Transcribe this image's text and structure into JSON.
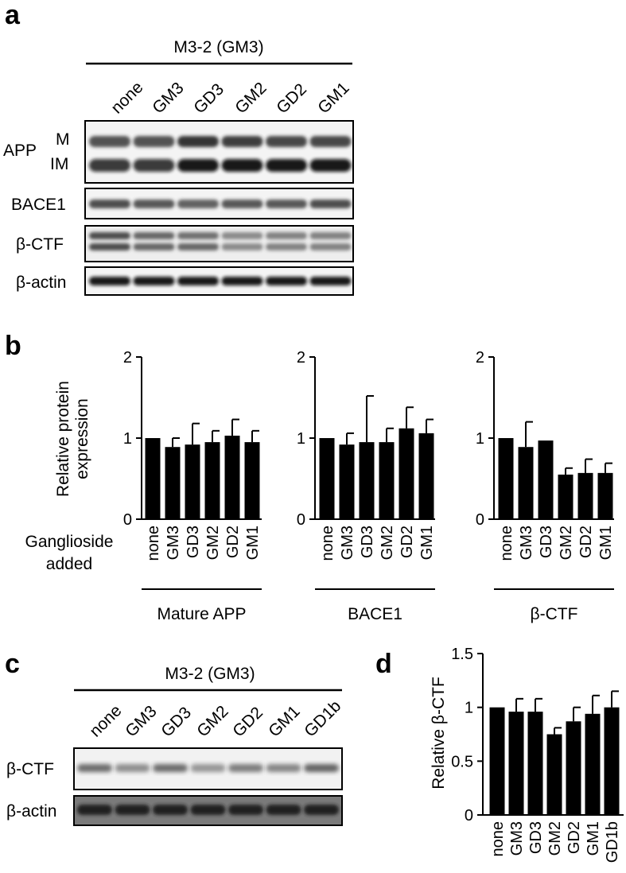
{
  "figure": {
    "panel_a": {
      "letter": "a",
      "cell_line": "M3-2 (GM3)",
      "lane_labels": [
        "none",
        "GM3",
        "GD3",
        "GM2",
        "GD2",
        "GM1"
      ],
      "blots": [
        {
          "label": "APP",
          "bands": [
            "M",
            "IM"
          ]
        },
        {
          "label": "BACE1"
        },
        {
          "label": "β-CTF"
        },
        {
          "label": "β-actin"
        }
      ]
    },
    "panel_b": {
      "letter": "b",
      "ylabel_line1": "Relative protein",
      "ylabel_line2": "expression",
      "xlabel_line1": "Ganglioside",
      "xlabel_line2": "added"
    },
    "panel_c": {
      "letter": "c",
      "cell_line": "M3-2 (GM3)",
      "lane_labels": [
        "none",
        "GM3",
        "GD3",
        "GM2",
        "GD2",
        "GM1",
        "GD1b"
      ],
      "blots": [
        {
          "label": "β-CTF"
        },
        {
          "label": "β-actin"
        }
      ]
    },
    "panel_d": {
      "letter": "d",
      "ylabel": "Relative β-CTF"
    }
  },
  "chart_data": [
    {
      "type": "bar",
      "panel": "b",
      "group_label": "Mature APP",
      "categories": [
        "none",
        "GM3",
        "GD3",
        "GM2",
        "GD2",
        "GM1"
      ],
      "values": [
        1.0,
        0.89,
        0.92,
        0.95,
        1.03,
        0.95
      ],
      "error": [
        0.0,
        0.11,
        0.26,
        0.14,
        0.2,
        0.14
      ],
      "ylim": [
        0,
        2
      ],
      "yticks": [
        "0",
        "1",
        "2"
      ],
      "ytick_values": [
        0,
        1,
        2
      ],
      "grid": false,
      "color": "#000000"
    },
    {
      "type": "bar",
      "panel": "b",
      "group_label": "BACE1",
      "categories": [
        "none",
        "GM3",
        "GD3",
        "GM2",
        "GD2",
        "GM1"
      ],
      "values": [
        1.0,
        0.92,
        0.95,
        0.95,
        1.12,
        1.06
      ],
      "error": [
        0.0,
        0.14,
        0.57,
        0.17,
        0.26,
        0.17
      ],
      "ylim": [
        0,
        2
      ],
      "yticks": [
        "0",
        "1",
        "2"
      ],
      "ytick_values": [
        0,
        1,
        2
      ],
      "grid": false,
      "color": "#000000"
    },
    {
      "type": "bar",
      "panel": "b",
      "group_label": "β-CTF",
      "categories": [
        "none",
        "GM3",
        "GD3",
        "GM2",
        "GD2",
        "GM1"
      ],
      "values": [
        1.0,
        0.89,
        0.97,
        0.55,
        0.57,
        0.57
      ],
      "error": [
        0.0,
        0.31,
        0.0,
        0.08,
        0.17,
        0.12
      ],
      "ylim": [
        0,
        2
      ],
      "yticks": [
        "0",
        "1",
        "2"
      ],
      "ytick_values": [
        0,
        1,
        2
      ],
      "grid": false,
      "color": "#000000"
    },
    {
      "type": "bar",
      "panel": "d",
      "categories": [
        "none",
        "GM3",
        "GD3",
        "GM2",
        "GD2",
        "GM1",
        "GD1b"
      ],
      "values": [
        1.0,
        0.96,
        0.96,
        0.75,
        0.87,
        0.94,
        1.0
      ],
      "error": [
        0.0,
        0.12,
        0.12,
        0.06,
        0.13,
        0.17,
        0.15
      ],
      "ylim": [
        0,
        1.5
      ],
      "yticks": [
        "0",
        "0.5",
        "1",
        "1.5"
      ],
      "ytick_values": [
        0,
        0.5,
        1,
        1.5
      ],
      "ylabel": "Relative β-CTF",
      "grid": false,
      "color": "#000000"
    }
  ]
}
